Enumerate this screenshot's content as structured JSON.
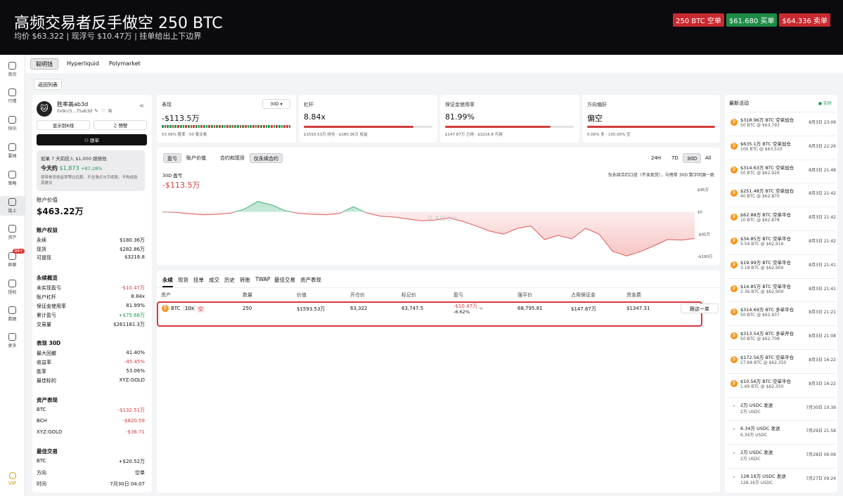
{
  "banner": {
    "title": "高频交易者反手做空 250 BTC",
    "subtitle": "均价 $63.322 | 现浮亏 $10.47万 | 挂单给出上下边界",
    "pills": [
      "250 BTC 空单",
      "$61.680 买单",
      "$64.336 卖单"
    ]
  },
  "nav": {
    "items": [
      "首页",
      "行情",
      "快讯",
      "要闻",
      "策略",
      "链上",
      "资产",
      "群聊",
      "授权",
      "数据",
      "更多"
    ],
    "badge": "99+",
    "vip": "VIP"
  },
  "tabs": [
    "聪明钱",
    "Hyperliquid",
    "Polymarket"
  ],
  "back": "返回列表",
  "profile": {
    "avatar": "🐱",
    "name": "胜率高ab3d",
    "addr": "0x9cc5...75ab3d",
    "show_kline": "显示到K线",
    "alert": "预警",
    "follow": "跟单",
    "note1": "如果 7 天前投入 $1,000 跟随他",
    "note2_label": "今天约",
    "note2_value": "$1,873",
    "note2_pct": "+87.28%",
    "note3": "按带单员收益率等比估算，不含滑点与手续费，不构成投资建议",
    "value_label": "账户价值",
    "value": "$463.22万",
    "equity_title": "账户权益",
    "equity": [
      [
        "永续",
        "$180.36万"
      ],
      [
        "现货",
        "$282.86万"
      ],
      [
        "可提现",
        "$3216.8"
      ]
    ],
    "perp_title": "永续概览",
    "perp": [
      [
        "未实现盈亏",
        "-$10.47万"
      ],
      [
        "账户杠杆",
        "8.84x"
      ],
      [
        "保证金使用率",
        "81.99%"
      ],
      [
        "累计盈亏",
        "+$75.68万"
      ],
      [
        "交易量",
        "$261181.3万"
      ]
    ],
    "perf_title": "表现 30D",
    "perf": [
      [
        "最大回撤",
        "41.40%"
      ],
      [
        "收益率",
        "-45.45%"
      ],
      [
        "胜率",
        "53.06%"
      ],
      [
        "最佳标的",
        "XYZ:GOLD"
      ]
    ],
    "asset_title": "资产表现",
    "asset": [
      [
        "BTC",
        "-$132.51万"
      ],
      [
        "BCH",
        "-$820.59"
      ],
      [
        "XYZ:GOLD",
        "-$36.71"
      ]
    ],
    "best_title": "最佳交易",
    "best": [
      [
        "BTC",
        "+$20.52万"
      ],
      [
        "方向",
        "空单"
      ],
      [
        "时间",
        "7月30日 04:07"
      ]
    ]
  },
  "metrics": {
    "perf_label": "表现",
    "range": "30D",
    "perf_value": "-$113.5万",
    "perf_sub": "53.06% 胜率 · 50 笔交易",
    "lev_label": "杠杆",
    "lev_value": "8.84x",
    "lev_sub": "$1593.53万 持仓 · $180.36万 权益",
    "lev_fill": 0.85,
    "margin_label": "保证金使用率",
    "margin_value": "81.99%",
    "margin_sub": "$147.87万 已用 · $3216.8 可用",
    "margin_fill": 0.82,
    "dir_label": "方向偏好",
    "dir_value": "偏空",
    "dir_sub": "0.00% 多 · 100.00% 空"
  },
  "chart": {
    "tabs": [
      "盈亏",
      "账户价值"
    ],
    "tabs2": [
      "合约和现货",
      "仅永续合约"
    ],
    "ranges": [
      "24H",
      "7D",
      "30D",
      "All"
    ],
    "label": "30D 盈亏",
    "value": "-$113.5万",
    "note": "仅永续合约口径（不含现货），与榜单 30D 数字同源一致",
    "watermark": "AiCoin",
    "ticks": [
      "$95万",
      "$0",
      "-$95万",
      "-$190万"
    ]
  },
  "chart_data": {
    "type": "area",
    "y": [
      0,
      -2,
      -8,
      -12,
      -10,
      -5,
      12,
      45,
      30,
      5,
      -6,
      -10,
      -12,
      -6,
      22,
      -5,
      -18,
      -22,
      -30,
      -38,
      -35,
      -25,
      -40,
      -60,
      -82,
      -95,
      -70,
      -60,
      -118,
      -100,
      -115,
      -70,
      -95,
      -168,
      -188,
      -170,
      -145,
      -118,
      -120,
      -113.5
    ],
    "ylim": [
      -220,
      110
    ],
    "ylabel": "盈亏"
  },
  "positions": {
    "tabs": [
      "永续",
      "现货",
      "挂单",
      "成交",
      "历史",
      "转账",
      "TWAP",
      "最佳交易",
      "资产表现"
    ],
    "headers": [
      "资产",
      "数量",
      "价值",
      "开仓价",
      "标记价",
      "盈亏",
      "强平价",
      "占用保证金",
      "资金费"
    ],
    "row": {
      "coin": "BTC",
      "lev": "10x",
      "side": "空",
      "qty": "250",
      "value": "$1593.53万",
      "entry": "63,322",
      "mark": "63,747.5",
      "pnl": "-$10.47万",
      "pnl_pct": "-6.62%",
      "liq": "68,795.81",
      "margin": "$147.87万",
      "funding": "$1347.31",
      "follow": "跟这一单"
    }
  },
  "activity": {
    "title": "最新活动",
    "live": "实时",
    "items": [
      {
        "t": "btc",
        "a": "$318.96万 BTC 空单加仓",
        "b": "50 BTC @ $63,793",
        "c": "8月3日 23:09"
      },
      {
        "t": "btc",
        "a": "$635.1万 BTC 空单加仓",
        "b": "100 BTC @ $63,510",
        "c": "8月3日 22:26"
      },
      {
        "t": "btc",
        "a": "$314.63万 BTC 空单加仓",
        "b": "50 BTC @ $62,926",
        "c": "8月3日 21:48"
      },
      {
        "t": "btc",
        "a": "$251.48万 BTC 空单加仓",
        "b": "40 BTC @ $62,870",
        "c": "8月3日 21:42"
      },
      {
        "t": "btc",
        "a": "$62.88万 BTC 空单平仓",
        "b": "10 BTC @ $62,878",
        "c": "8月3日 21:42"
      },
      {
        "t": "btc",
        "a": "$34.85万 BTC 空单平仓",
        "b": "5.54 BTC @ $62,916",
        "c": "8月3日 21:42"
      },
      {
        "t": "btc",
        "a": "$19.99万 BTC 空单平仓",
        "b": "3.18 BTC @ $62,900",
        "c": "8月3日 21:41"
      },
      {
        "t": "btc",
        "a": "$14.85万 BTC 空单平仓",
        "b": "2.36 BTC @ $62,900",
        "c": "8月3日 21:41"
      },
      {
        "t": "btc",
        "a": "$314.69万 BTC 多单平仓",
        "b": "50 BTC @ $62,937",
        "c": "8月3日 21:21"
      },
      {
        "t": "btc",
        "a": "$313.54万 BTC 多单开仓",
        "b": "50 BTC @ $62,708",
        "c": "8月3日 21:08"
      },
      {
        "t": "btc",
        "a": "$172.56万 BTC 空单平仓",
        "b": "27.68 BTC @ $62,350",
        "c": "8月3日 16:22"
      },
      {
        "t": "btc",
        "a": "$10.56万 BTC 空单平仓",
        "b": "1.69 BTC @ $62,350",
        "c": "8月3日 16:22"
      },
      {
        "t": "usdc",
        "a": "2万 USDC 发送",
        "b": "2万 USDC",
        "c": "7月30日 10:39"
      },
      {
        "t": "usdc",
        "a": "6.34万 USDC 发送",
        "b": "6.34万 USDC",
        "c": "7月29日 21:58"
      },
      {
        "t": "usdc",
        "a": "2万 USDC 发送",
        "b": "2万 USDC",
        "c": "7月28日 06:09"
      },
      {
        "t": "usdc",
        "a": "128.16万 USDC 发送",
        "b": "128.16万 USDC",
        "c": "7月27日 09:24"
      }
    ]
  }
}
